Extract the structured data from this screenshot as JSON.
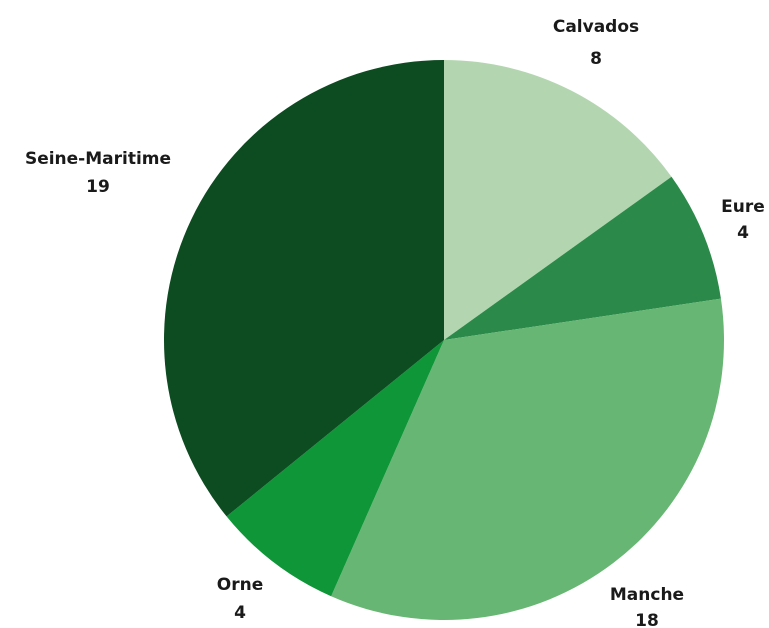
{
  "chart_data": {
    "type": "pie",
    "title": "",
    "start": "12 o'clock",
    "direction": "clockwise",
    "slices": [
      {
        "label": "Calvados",
        "value_text": "8",
        "value": 8,
        "color": "#b3d6b1"
      },
      {
        "label": "Eure",
        "value_text": "4",
        "value": 4,
        "color": "#2b8a4a"
      },
      {
        "label": "Manche",
        "value_text": "18",
        "value": 18,
        "color": "#67b673"
      },
      {
        "label": "Orne",
        "value_text": "4",
        "value": 4,
        "color": "#0e9638"
      },
      {
        "label": "Seine-Maritime",
        "value_text": "19",
        "value": 19,
        "color": "#0d4b21"
      }
    ]
  }
}
